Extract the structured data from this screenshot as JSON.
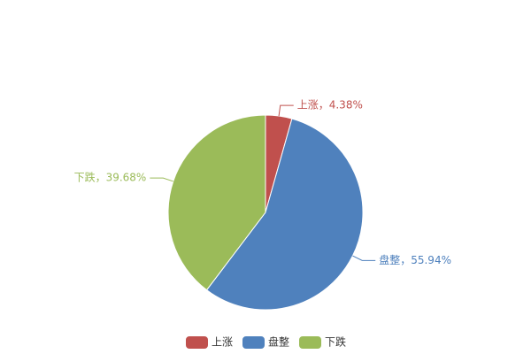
{
  "chart_data": {
    "type": "pie",
    "categories": [
      "上涨",
      "盘整",
      "下跌"
    ],
    "values": [
      4.38,
      55.94,
      39.68
    ],
    "value_labels": [
      "上涨，4.38%",
      "盘整，55.94%",
      "下跌，39.68%"
    ],
    "colors": [
      "#c0504d",
      "#4f81bd",
      "#9bbb59"
    ],
    "legend": "bottom"
  }
}
